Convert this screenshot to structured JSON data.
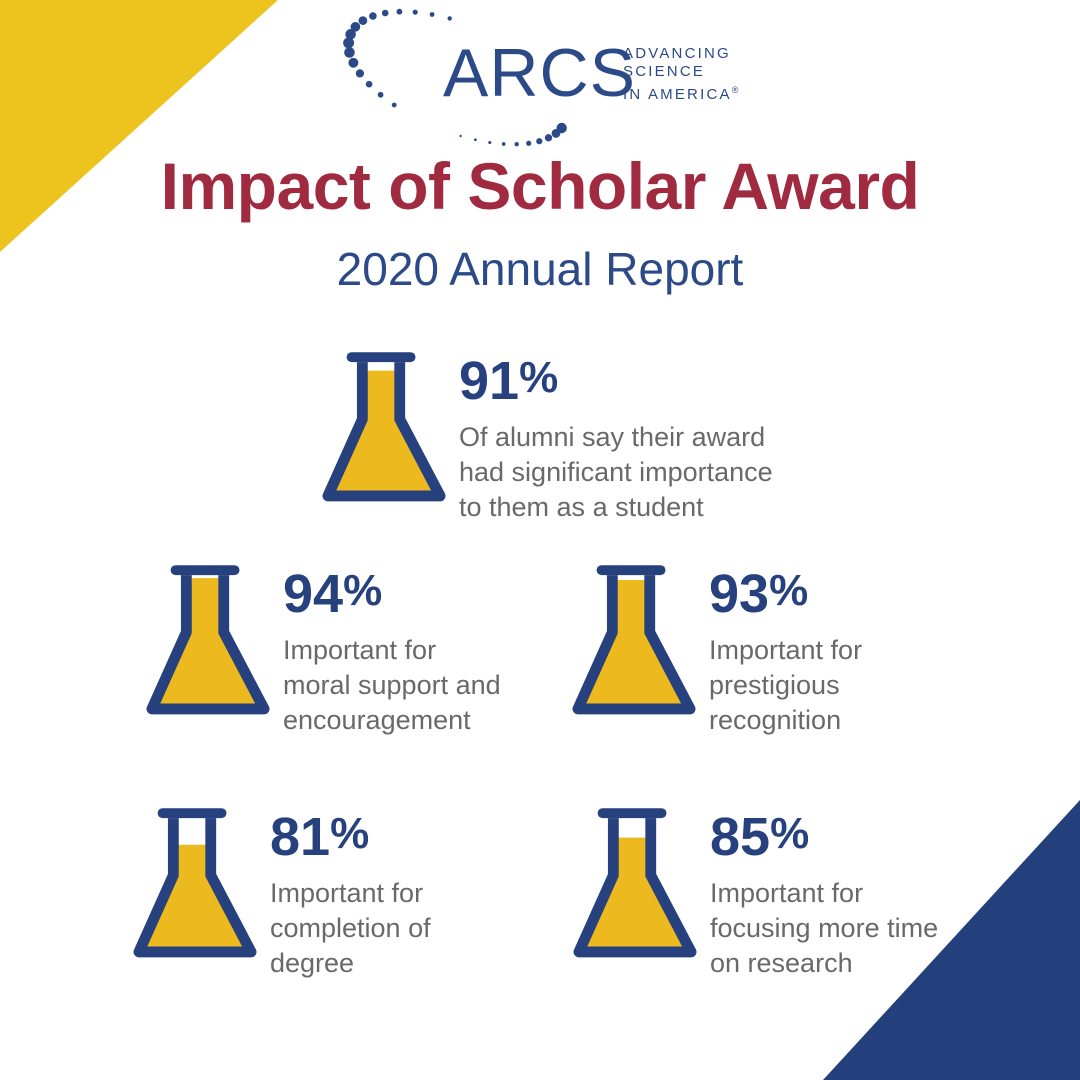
{
  "logo": {
    "wordmark": "ARCS",
    "tagline_lines": [
      "ADVANCING",
      "SCIENCE",
      "IN AMERICA"
    ],
    "registered_mark": "®"
  },
  "header": {
    "title": "Impact of Scholar Award",
    "subtitle": "2020 Annual Report"
  },
  "percent_sign": "%",
  "stats": [
    {
      "value": 91,
      "percent_label": "91%",
      "lines": [
        "Of alumni say their award",
        "had significant importance",
        "to them as a student"
      ]
    },
    {
      "value": 94,
      "percent_label": "94%",
      "lines": [
        "Important for",
        "moral support and",
        "encouragement"
      ]
    },
    {
      "value": 93,
      "percent_label": "93%",
      "lines": [
        "Important for",
        "prestigious",
        "recognition"
      ]
    },
    {
      "value": 81,
      "percent_label": "81%",
      "lines": [
        "Important for",
        "completion of",
        "degree"
      ]
    },
    {
      "value": 85,
      "percent_label": "85%",
      "lines": [
        "Important for",
        "focusing more time",
        "on research"
      ]
    }
  ],
  "colors": {
    "gold": "#EDC31E",
    "flask_gold": "#ECB91E",
    "navy": "#26417D",
    "corner_navy": "#24407C",
    "logo_blue": "#2C4A88",
    "title_red": "#A02B40",
    "body_gray": "#696969",
    "background": "#FFFFFF"
  },
  "chart_data": {
    "type": "bar",
    "title": "Impact of Scholar Award",
    "subtitle": "2020 Annual Report",
    "unit": "%",
    "ylim": [
      0,
      100
    ],
    "categories": [
      "Award had significant importance to them as a student",
      "Important for moral support and encouragement",
      "Important for prestigious recognition",
      "Important for completion of degree",
      "Important for focusing more time on research"
    ],
    "values": [
      91,
      94,
      93,
      81,
      85
    ],
    "legend_position": "none",
    "grid": false,
    "notes": "Each value rendered as a flask filled to the given percentage"
  }
}
